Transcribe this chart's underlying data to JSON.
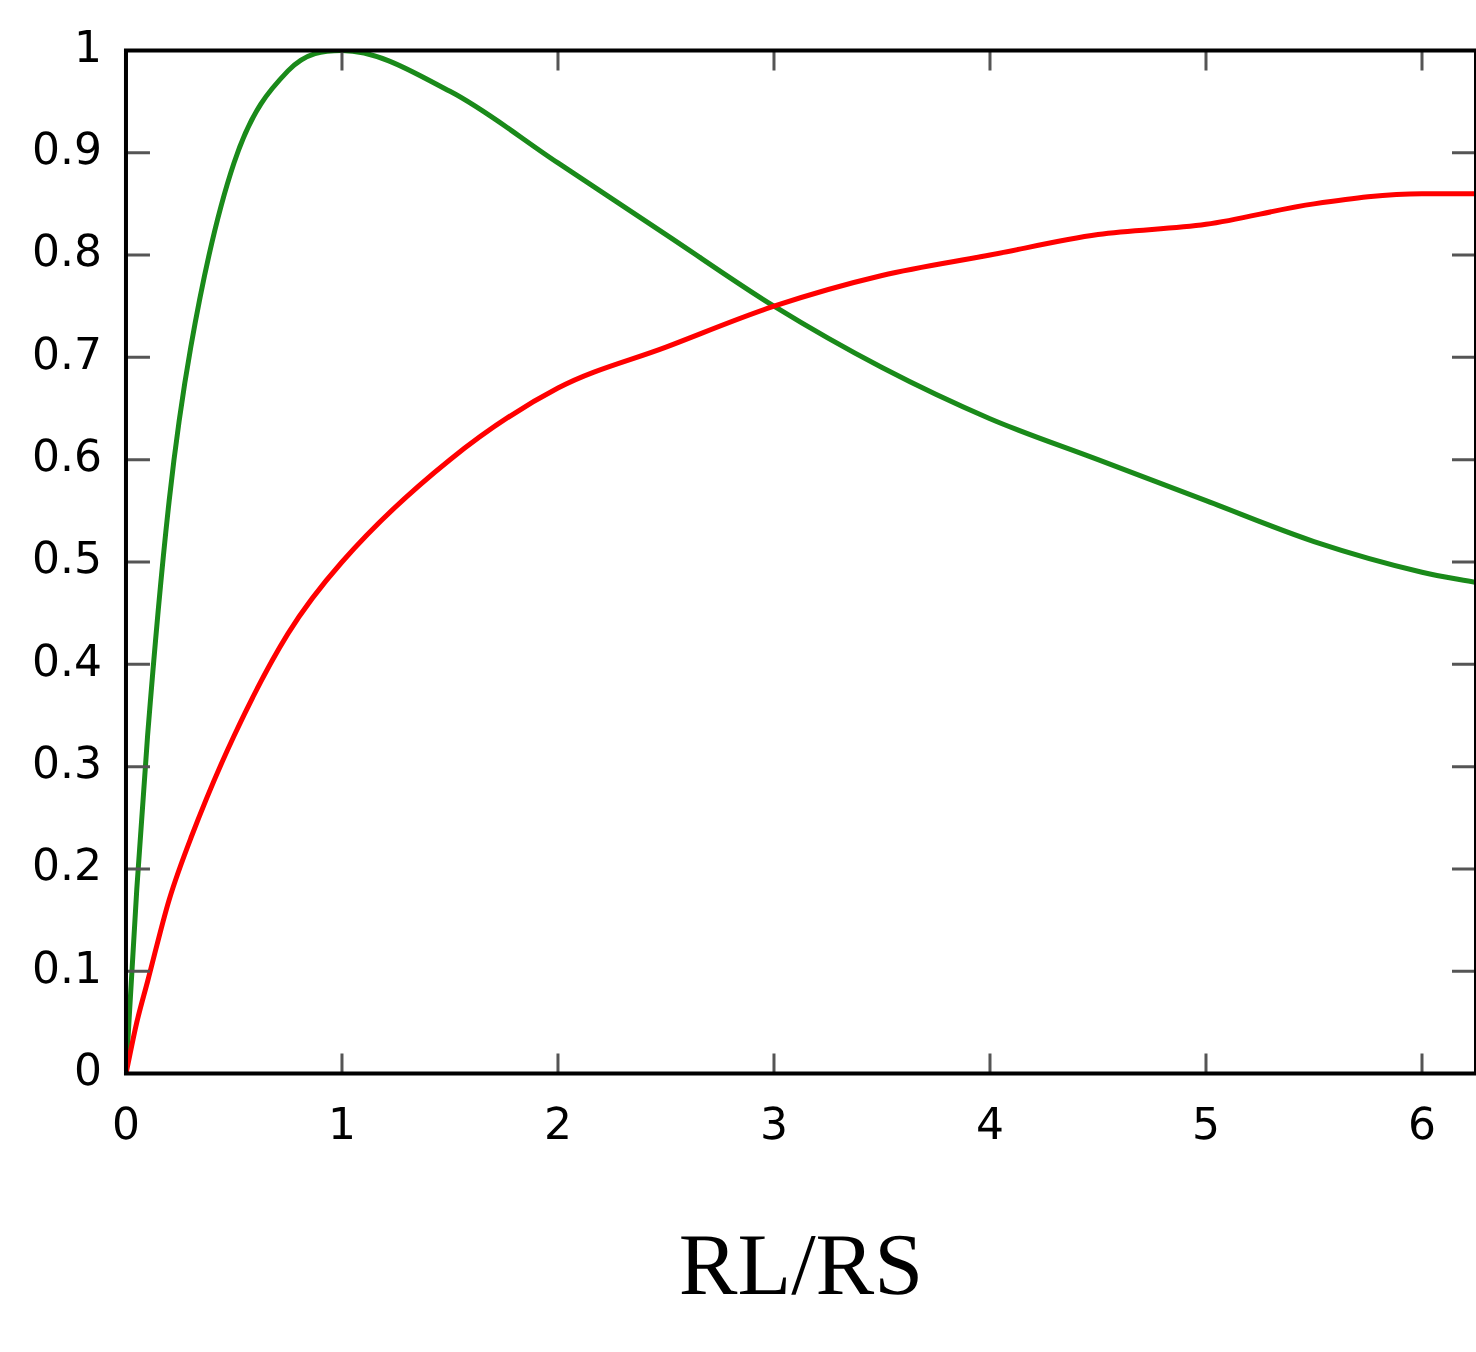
{
  "chart_data": {
    "type": "line",
    "xlabel": "RL/RS",
    "x": [
      0,
      0.05,
      0.1,
      0.2,
      0.3,
      0.5,
      0.75,
      1,
      1.5,
      2,
      2.5,
      3,
      3.5,
      4,
      4.5,
      5,
      5.5,
      6,
      6.25
    ],
    "series": [
      {
        "color": "#ff0000",
        "values": [
          0,
          0.05,
          0.09,
          0.17,
          0.23,
          0.33,
          0.43,
          0.5,
          0.6,
          0.67,
          0.71,
          0.75,
          0.78,
          0.8,
          0.82,
          0.83,
          0.85,
          0.86,
          0.86
        ]
      },
      {
        "color": "#1a8a1a",
        "values": [
          0,
          0.18,
          0.33,
          0.56,
          0.71,
          0.89,
          0.98,
          1,
          0.96,
          0.89,
          0.82,
          0.75,
          0.69,
          0.64,
          0.6,
          0.56,
          0.52,
          0.49,
          0.48
        ]
      }
    ],
    "xlim": [
      0,
      6.25
    ],
    "xticks": [
      0,
      1,
      2,
      3,
      4,
      5,
      6
    ],
    "ylim": [
      0,
      1
    ],
    "yticks": [
      0,
      0.1,
      0.2,
      0.3,
      0.4,
      0.5,
      0.6,
      0.7,
      0.8,
      0.9,
      1
    ],
    "marker": "none",
    "line_style": "solid",
    "grid": false,
    "legend": false
  }
}
